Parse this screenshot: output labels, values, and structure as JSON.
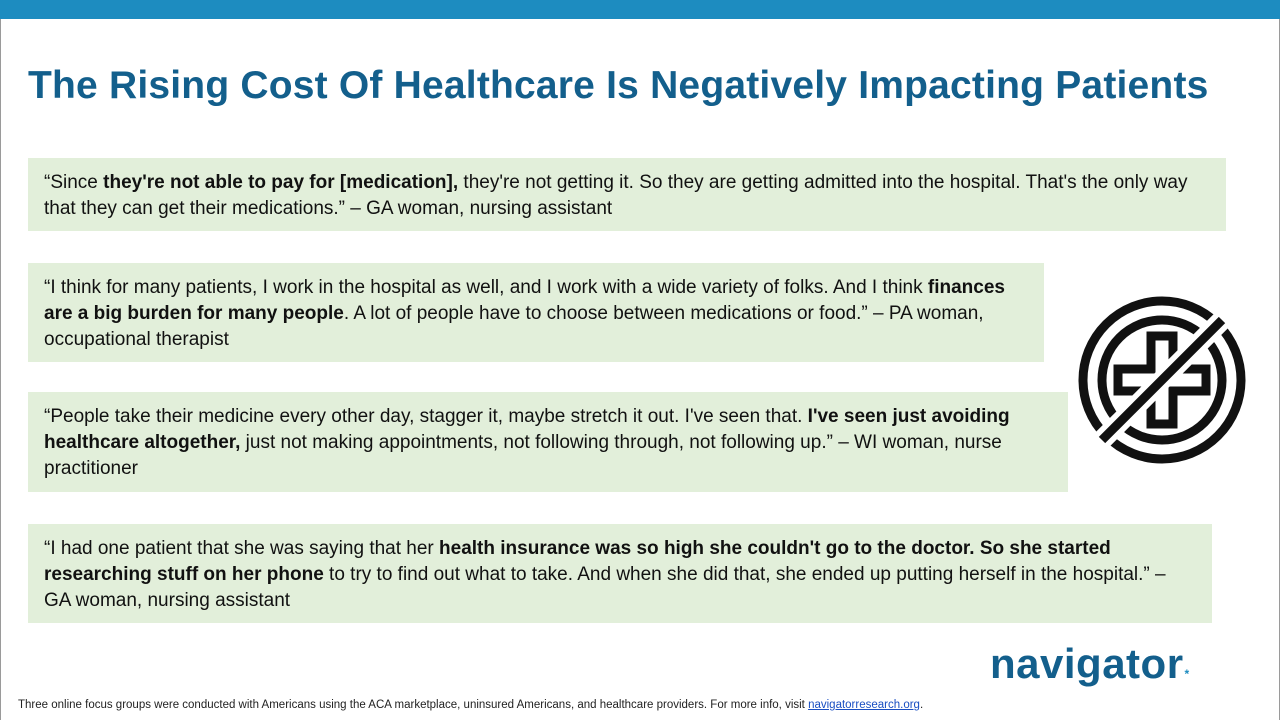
{
  "slide": {
    "title": "The Rising Cost Of Healthcare Is Negatively Impacting Patients"
  },
  "quotes": [
    {
      "text_before": "“Since ",
      "bold": "they're not able to pay for [medication],",
      "text_after": " they're not getting it. So they are getting admitted into the hospital. That's the only way that they can get their medications.” – GA woman, nursing assistant"
    },
    {
      "text_before": "“I think for many patients, I work in the hospital as well, and I work with a wide variety of folks. And I think ",
      "bold": "finances are a big burden for many people",
      "text_after": ". A lot of people have to choose between medications or food.” – PA woman, occupational therapist"
    },
    {
      "text_before": "“People take their medicine every other day, stagger it, maybe stretch it out. I've seen that. ",
      "bold": "I've seen just avoiding healthcare altogether,",
      "text_after": " just not making appointments, not following through, not following up.” – WI woman, nurse practitioner"
    },
    {
      "text_before": "“I had one patient that she was saying that her ",
      "bold": "health insurance was so high she couldn't go to the doctor. So she started researching stuff on her phone",
      "text_after": " to try to find out what to take. And when she did that, she ended up putting herself in the hospital.” – GA woman, nursing assistant"
    }
  ],
  "icon": {
    "name": "no-healthcare-icon"
  },
  "logo": {
    "text": "navigator",
    "mark": "*"
  },
  "footer": {
    "text": "Three online focus groups were conducted with Americans using the ACA marketplace, uninsured Americans, and healthcare providers. For more info, visit ",
    "link": "navigatorresearch.org",
    "suffix": "."
  },
  "colors": {
    "title": "#135f8c",
    "top_bar": "#1d8cc0",
    "quote_background": "#e2efda",
    "link": "#1a4fc2"
  }
}
